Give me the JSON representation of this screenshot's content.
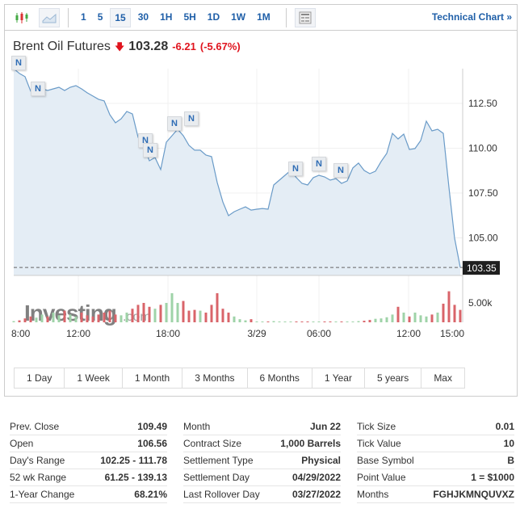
{
  "toolbar": {
    "chart_type_icons": [
      "candlestick-icon",
      "area-chart-icon"
    ],
    "timeframes": [
      "1",
      "5",
      "15",
      "30",
      "1H",
      "5H",
      "1D",
      "1W",
      "1M"
    ],
    "selected_timeframe": "15",
    "table_icon": "data-table-icon",
    "technical_chart_label": "Technical Chart »"
  },
  "instrument": {
    "name": "Brent Oil Futures",
    "direction_icon": "arrow-down-icon",
    "price": "103.28",
    "change": "-6.21",
    "change_pct": "(-5.67%)"
  },
  "colors": {
    "line": "#6a9bc8",
    "area": "#e4edf5",
    "up_volume": "#9fd3a8",
    "down_volume": "#d9646a",
    "negative": "#e0141e",
    "link": "#1f5fa8"
  },
  "news_marker_label": "N",
  "watermark": "Investing.com",
  "chart_data": {
    "type": "area",
    "interval": "15 min",
    "y_ticks": [
      "112.50",
      "110.00",
      "107.50",
      "105.00"
    ],
    "y_tick_values": [
      112.5,
      110,
      107.5,
      105
    ],
    "ylim": [
      102.9,
      114.45
    ],
    "last_price_label": "103.35",
    "last_price": 103.35,
    "x_ticks": [
      "8:00",
      "12:00",
      "18:00",
      "3/29",
      "06:00",
      "12:00",
      "15:00"
    ],
    "prices": [
      114.44,
      114.17,
      113.99,
      113.18,
      113.18,
      113.31,
      113.22,
      113.31,
      113.4,
      113.22,
      113.4,
      113.49,
      113.31,
      113.09,
      112.91,
      112.73,
      112.64,
      111.87,
      111.42,
      111.64,
      112.05,
      111.91,
      110.61,
      110.16,
      109.3,
      109.48,
      108.81,
      110.34,
      110.7,
      111.06,
      110.7,
      110.16,
      109.89,
      109.89,
      109.62,
      109.53,
      108.09,
      107.0,
      106.24,
      106.46,
      106.6,
      106.73,
      106.55,
      106.6,
      106.64,
      106.6,
      107.95,
      108.22,
      108.49,
      108.76,
      108.36,
      108.04,
      107.95,
      108.36,
      108.49,
      108.4,
      108.22,
      108.31,
      108.04,
      108.18,
      108.9,
      109.17,
      108.76,
      108.58,
      108.72,
      109.26,
      109.71,
      110.83,
      110.52,
      110.79,
      109.93,
      109.98,
      110.43,
      111.51,
      110.97,
      111.06,
      110.83,
      107.82,
      104.98,
      103.36
    ],
    "volume_tick": "5.00k",
    "volume_tick_value": 5000,
    "volumes": [
      300,
      500,
      1000,
      1500,
      1200,
      2000,
      1500,
      2500,
      1800,
      3000,
      2000,
      1500,
      2500,
      1800,
      1500,
      2000,
      2500,
      3000,
      2000,
      1800,
      2500,
      3500,
      4500,
      5000,
      4000,
      3500,
      4500,
      5000,
      7500,
      5000,
      5500,
      3000,
      3200,
      3000,
      2500,
      4500,
      7500,
      3500,
      2500,
      1500,
      800,
      500,
      800,
      200,
      100,
      200,
      300,
      100,
      200,
      100,
      100,
      100,
      100,
      100,
      200,
      200,
      200,
      100,
      100,
      100,
      200,
      300,
      400,
      600,
      900,
      1000,
      1300,
      2000,
      4000,
      2500,
      1500,
      2500,
      1800,
      1500,
      2000,
      2500,
      4800,
      8000,
      4500,
      3200
    ]
  },
  "ranges": [
    "1 Day",
    "1 Week",
    "1 Month",
    "3 Months",
    "6 Months",
    "1 Year",
    "5 years",
    "Max"
  ],
  "stats": [
    [
      {
        "label": "Prev. Close",
        "value": "109.49"
      },
      {
        "label": "Open",
        "value": "106.56"
      },
      {
        "label": "Day's Range",
        "value": "102.25 - 111.78"
      },
      {
        "label": "52 wk Range",
        "value": "61.25 - 139.13"
      },
      {
        "label": "1-Year Change",
        "value": "68.21%"
      }
    ],
    [
      {
        "label": "Month",
        "value": "Jun 22"
      },
      {
        "label": "Contract Size",
        "value": "1,000 Barrels"
      },
      {
        "label": "Settlement Type",
        "value": "Physical"
      },
      {
        "label": "Settlement Day",
        "value": "04/29/2022"
      },
      {
        "label": "Last Rollover Day",
        "value": "03/27/2022"
      }
    ],
    [
      {
        "label": "Tick Size",
        "value": "0.01"
      },
      {
        "label": "Tick Value",
        "value": "10"
      },
      {
        "label": "Base Symbol",
        "value": "B"
      },
      {
        "label": "Point Value",
        "value": "1 = $1000"
      },
      {
        "label": "Months",
        "value": "FGHJKMNQUVXZ"
      }
    ]
  ]
}
